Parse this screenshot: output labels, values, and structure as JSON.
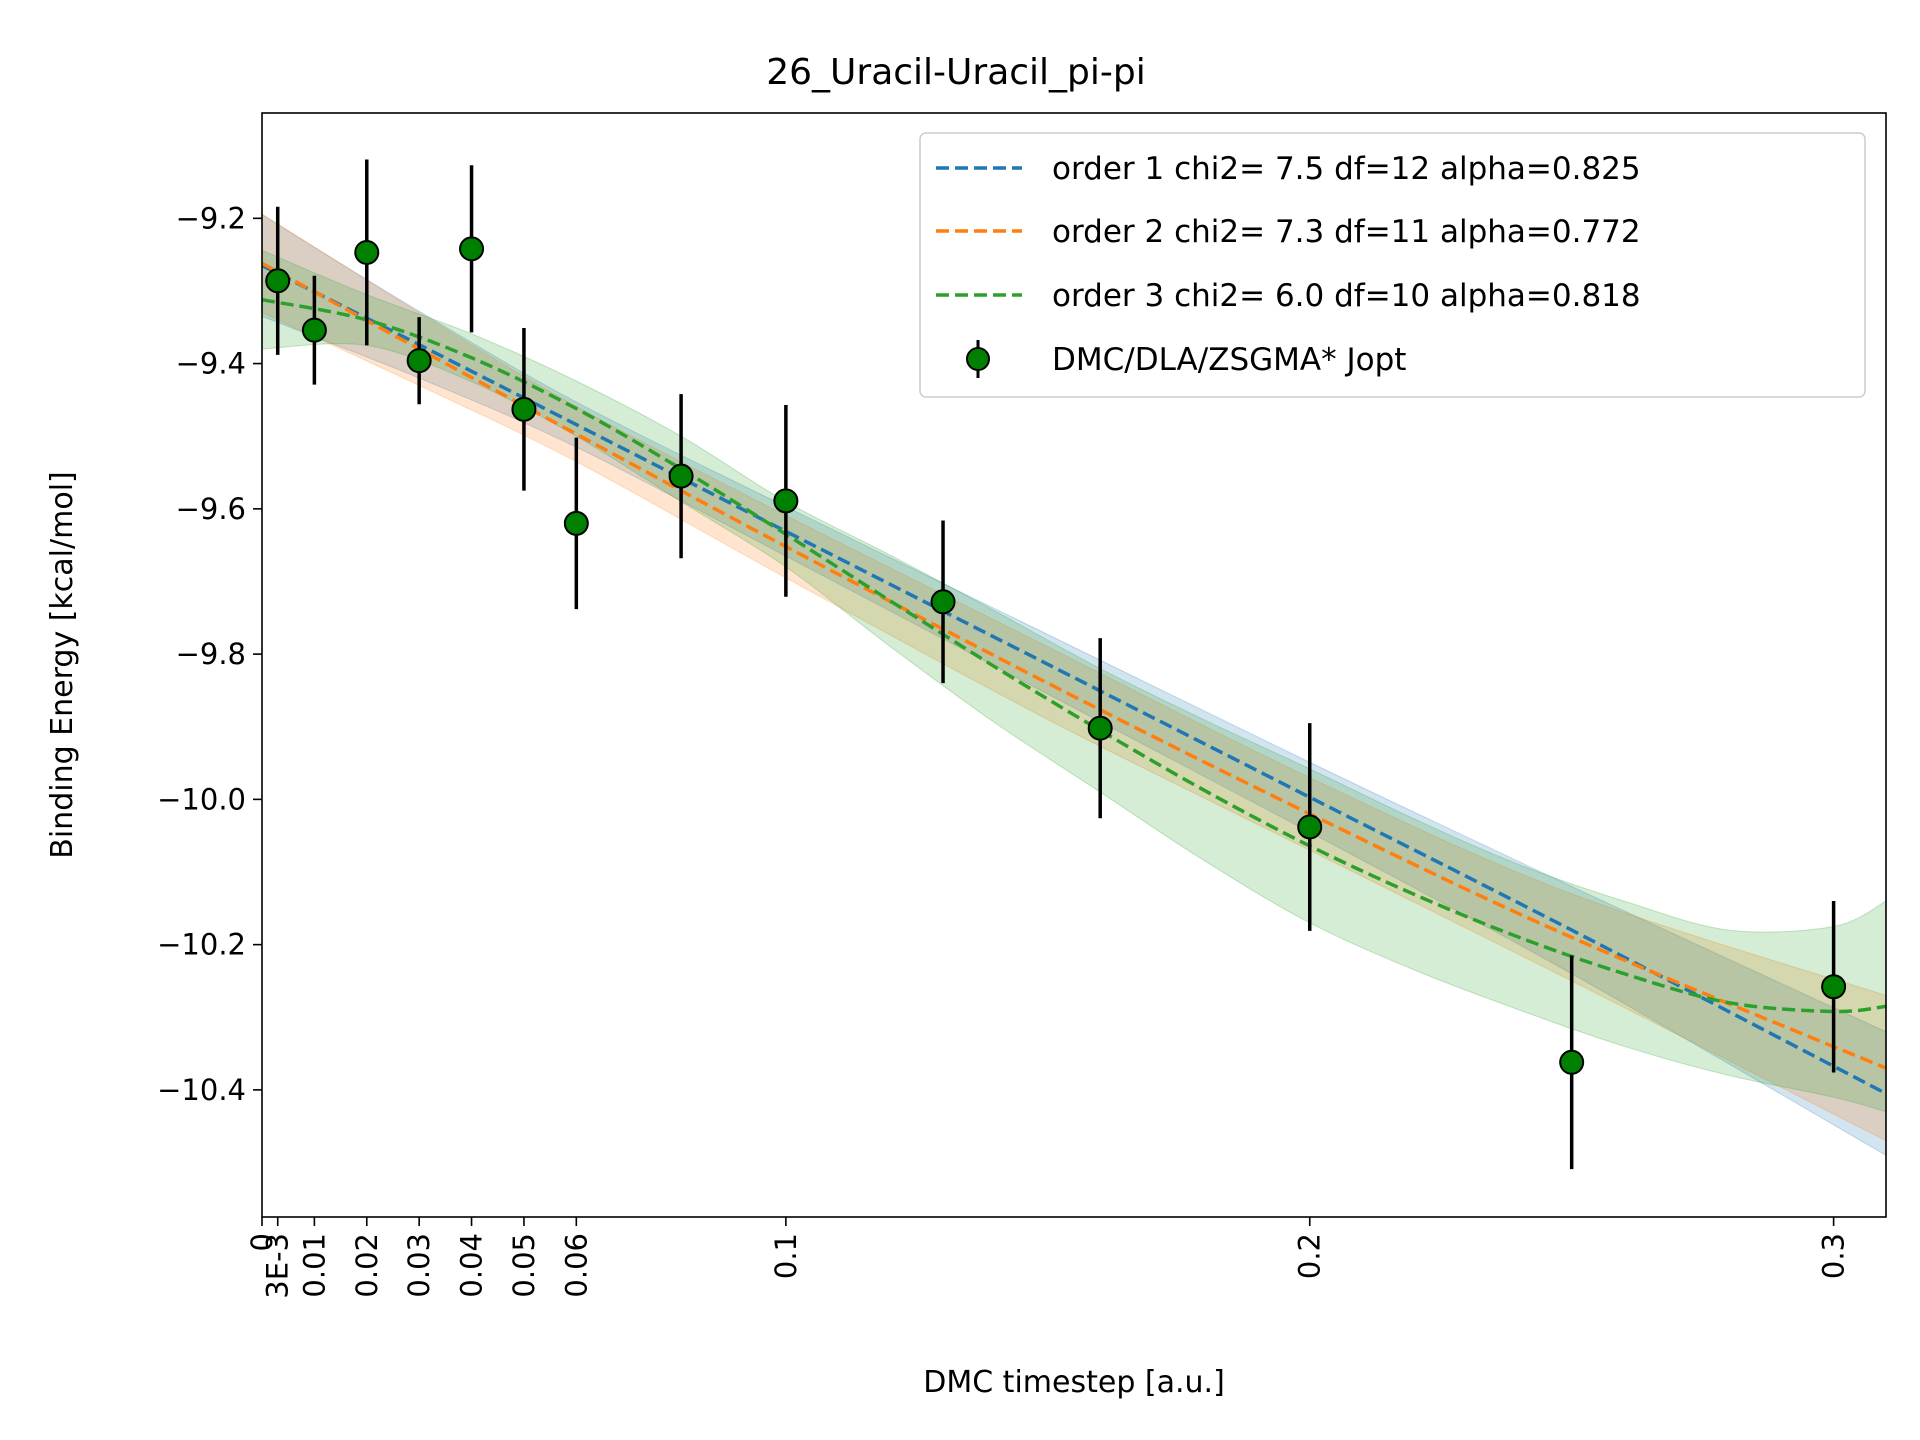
{
  "chart_data": {
    "type": "line",
    "title": "26_Uracil-Uracil_pi-pi",
    "xlabel": "DMC timestep [a.u.]",
    "ylabel": "Binding Energy [kcal/mol]",
    "xlim": [
      0,
      0.31
    ],
    "ylim": [
      -10.575,
      -9.055
    ],
    "x_ticks": [
      {
        "value": 0,
        "label": "0"
      },
      {
        "value": 0.003,
        "label": "3E-3"
      },
      {
        "value": 0.01,
        "label": "0.01"
      },
      {
        "value": 0.02,
        "label": "0.02"
      },
      {
        "value": 0.03,
        "label": "0.03"
      },
      {
        "value": 0.04,
        "label": "0.04"
      },
      {
        "value": 0.05,
        "label": "0.05"
      },
      {
        "value": 0.06,
        "label": "0.06"
      },
      {
        "value": 0.1,
        "label": "0.1"
      },
      {
        "value": 0.2,
        "label": "0.2"
      },
      {
        "value": 0.3,
        "label": "0.3"
      }
    ],
    "y_ticks": [
      {
        "value": -9.2,
        "label": "−9.2"
      },
      {
        "value": -9.4,
        "label": "−9.4"
      },
      {
        "value": -9.6,
        "label": "−9.6"
      },
      {
        "value": -9.8,
        "label": "−9.8"
      },
      {
        "value": -10.0,
        "label": "−10.0"
      },
      {
        "value": -10.2,
        "label": "−10.2"
      },
      {
        "value": -10.4,
        "label": "−10.4"
      }
    ],
    "legend_position": "top-right",
    "grid": false,
    "points": {
      "name": "DMC/DLA/ZSGMA* Jopt",
      "color": "#008000",
      "x": [
        0.003,
        0.01,
        0.02,
        0.03,
        0.04,
        0.05,
        0.06,
        0.08,
        0.1,
        0.13,
        0.16,
        0.2,
        0.25,
        0.3
      ],
      "y": [
        -9.286,
        -9.354,
        -9.247,
        -9.396,
        -9.242,
        -9.463,
        -9.62,
        -9.555,
        -9.589,
        -9.728,
        -9.902,
        -10.038,
        -10.362,
        -10.258
      ],
      "err": [
        0.102,
        0.075,
        0.128,
        0.06,
        0.115,
        0.112,
        0.118,
        0.113,
        0.132,
        0.112,
        0.124,
        0.143,
        0.147,
        0.118
      ]
    },
    "series": [
      {
        "name": "order 1 chi2= 7.5 df=12 alpha=0.825",
        "color": "#1f77b4",
        "x": [
          0,
          0.03,
          0.06,
          0.1,
          0.15,
          0.2,
          0.25,
          0.31
        ],
        "y": [
          -9.265,
          -9.374,
          -9.484,
          -9.631,
          -9.814,
          -9.997,
          -10.18,
          -10.405
        ],
        "band_lower": [
          -9.335,
          -9.42,
          -9.515,
          -9.665,
          -9.855,
          -10.045,
          -10.24,
          -10.49
        ],
        "band_upper": [
          -9.195,
          -9.328,
          -9.453,
          -9.597,
          -9.773,
          -9.949,
          -10.12,
          -10.32
        ]
      },
      {
        "name": "order 2 chi2= 7.3 df=11 alpha=0.772",
        "color": "#ff7f0e",
        "x": [
          0,
          0.03,
          0.06,
          0.1,
          0.15,
          0.2,
          0.25,
          0.31
        ],
        "y": [
          -9.262,
          -9.38,
          -9.497,
          -9.652,
          -9.84,
          -10.02,
          -10.19,
          -10.37
        ],
        "band_lower": [
          -9.33,
          -9.43,
          -9.535,
          -9.695,
          -9.89,
          -10.07,
          -10.25,
          -10.47
        ],
        "band_upper": [
          -9.194,
          -9.33,
          -9.459,
          -9.609,
          -9.79,
          -9.97,
          -10.13,
          -10.27
        ]
      },
      {
        "name": "order 3 chi2= 6.0 df=10 alpha=0.818",
        "color": "#2ca02c",
        "x": [
          0,
          0.02,
          0.04,
          0.06,
          0.08,
          0.1,
          0.12,
          0.14,
          0.16,
          0.18,
          0.2,
          0.22,
          0.24,
          0.26,
          0.28,
          0.3,
          0.31
        ],
        "y": [
          -9.312,
          -9.34,
          -9.392,
          -9.462,
          -9.545,
          -9.635,
          -9.727,
          -9.818,
          -9.905,
          -9.988,
          -10.064,
          -10.131,
          -10.19,
          -10.24,
          -10.28,
          -10.292,
          -10.285
        ],
        "band_lower": [
          -9.38,
          -9.375,
          -9.425,
          -9.5,
          -9.59,
          -9.68,
          -9.79,
          -9.895,
          -9.99,
          -10.085,
          -10.17,
          -10.235,
          -10.29,
          -10.34,
          -10.38,
          -10.41,
          -10.43
        ],
        "band_upper": [
          -9.244,
          -9.305,
          -9.359,
          -9.424,
          -9.5,
          -9.59,
          -9.664,
          -9.741,
          -9.82,
          -9.891,
          -9.958,
          -10.027,
          -10.09,
          -10.14,
          -10.18,
          -10.175,
          -10.14
        ]
      }
    ]
  }
}
